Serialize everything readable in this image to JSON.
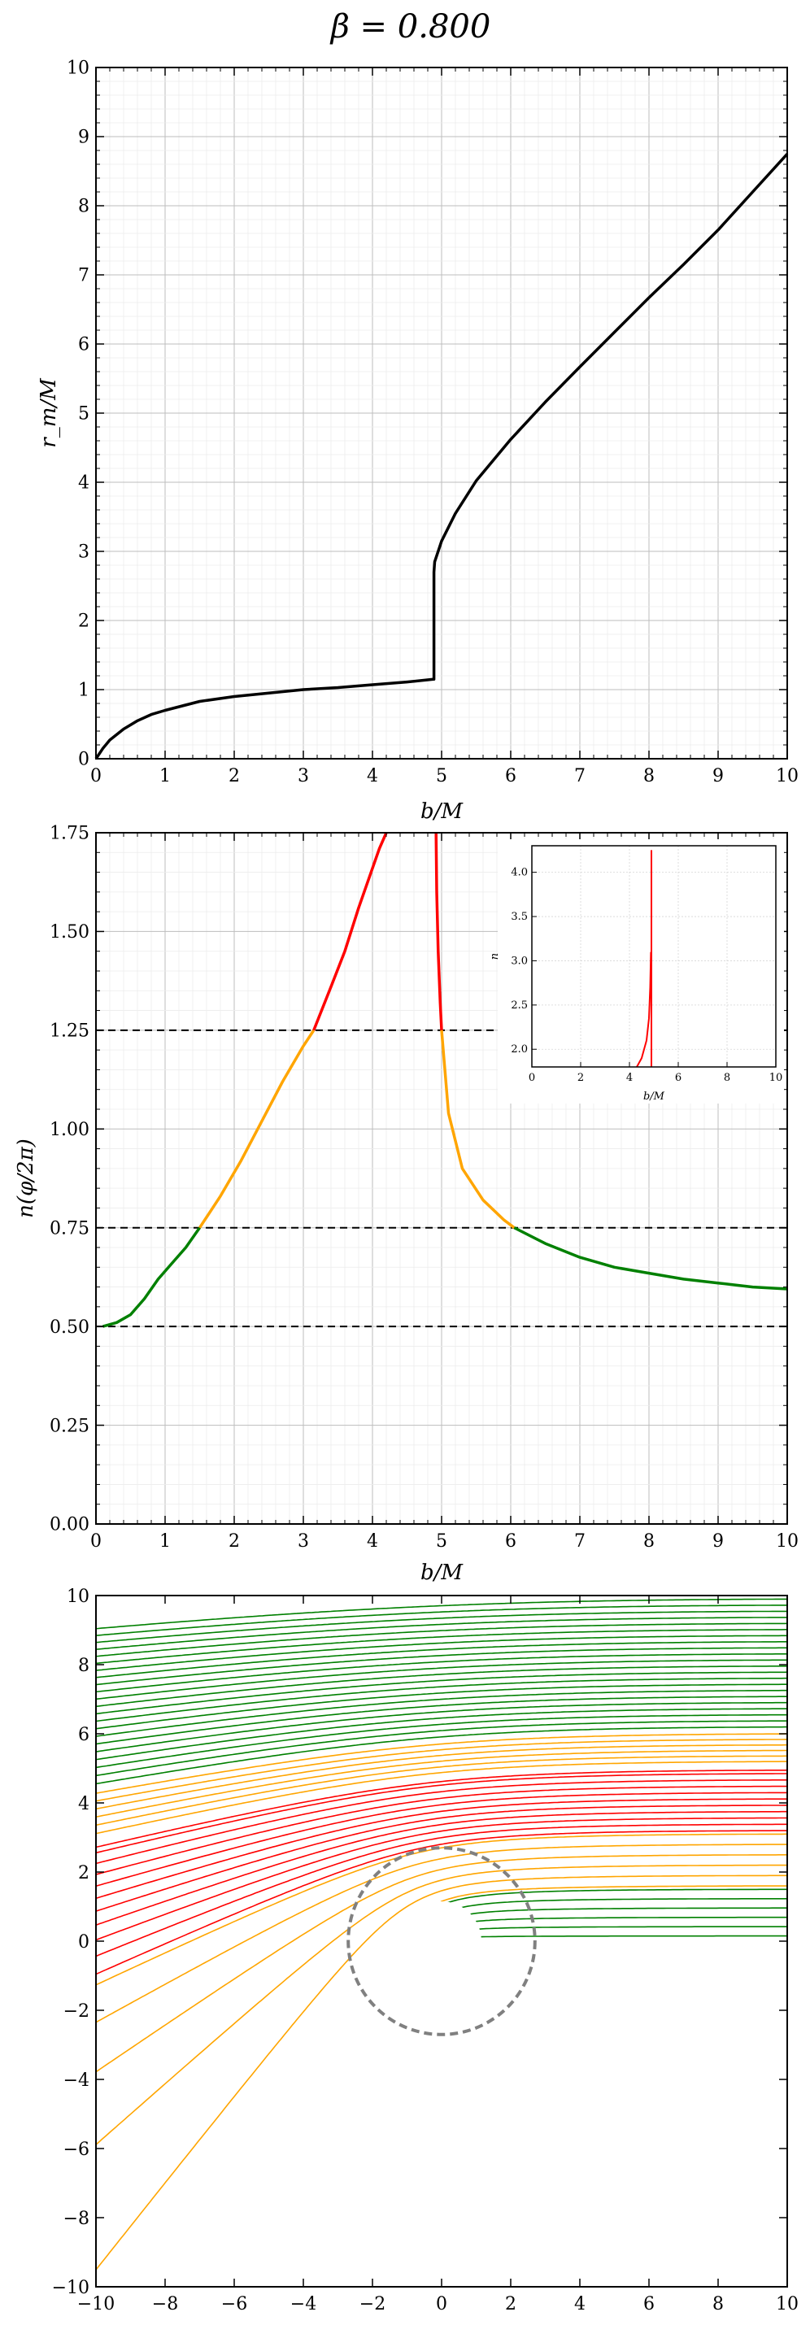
{
  "figure": {
    "title": "β = 0.800"
  },
  "chart_data": [
    {
      "id": "rm",
      "type": "line",
      "xlabel": "b/M",
      "ylabel": "r_m/M",
      "xlim": [
        0,
        10
      ],
      "ylim": [
        0,
        10
      ],
      "xticks": [
        "0",
        "1",
        "2",
        "3",
        "4",
        "5",
        "6",
        "7",
        "8",
        "9",
        "10"
      ],
      "yticks": [
        "0",
        "1",
        "2",
        "3",
        "4",
        "5",
        "6",
        "7",
        "8",
        "9",
        "10"
      ],
      "grid": true,
      "series": [
        {
          "color": "#000000",
          "x": [
            0,
            0.1,
            0.2,
            0.4,
            0.6,
            0.8,
            1.0,
            1.5,
            2.0,
            2.5,
            3.0,
            3.5,
            4.0,
            4.5,
            4.88,
            4.89,
            4.89,
            4.9,
            5.0,
            5.2,
            5.5,
            6.0,
            6.5,
            7.0,
            7.5,
            8.0,
            8.5,
            9.0,
            9.5,
            10.0
          ],
          "y": [
            0,
            0.15,
            0.27,
            0.43,
            0.55,
            0.64,
            0.7,
            0.83,
            0.9,
            0.95,
            1.0,
            1.03,
            1.07,
            1.11,
            1.15,
            1.15,
            2.7,
            2.85,
            3.15,
            3.55,
            4.02,
            4.62,
            5.16,
            5.67,
            6.17,
            6.67,
            7.15,
            7.65,
            8.2,
            8.75
          ]
        }
      ]
    },
    {
      "id": "n",
      "type": "line",
      "xlabel": "b/M",
      "ylabel": "n(φ/2π)",
      "xlim": [
        0,
        10
      ],
      "ylim": [
        0,
        1.75
      ],
      "xticks": [
        "0",
        "1",
        "2",
        "3",
        "4",
        "5",
        "6",
        "7",
        "8",
        "9",
        "10"
      ],
      "yticks": [
        "0.00",
        "0.25",
        "0.50",
        "0.75",
        "1.00",
        "1.25",
        "1.50",
        "1.75"
      ],
      "hlines": [
        0.5,
        0.75,
        1.25
      ],
      "grid": true,
      "series": [
        {
          "color": "#008000",
          "x": [
            0.1,
            0.3,
            0.5,
            0.7,
            0.9,
            1.1,
            1.3,
            1.5
          ],
          "y": [
            0.5,
            0.51,
            0.53,
            0.57,
            0.62,
            0.66,
            0.7,
            0.75
          ]
        },
        {
          "color": "#ffa500",
          "x": [
            1.5,
            1.8,
            2.1,
            2.4,
            2.7,
            3.0,
            3.15
          ],
          "y": [
            0.75,
            0.83,
            0.92,
            1.02,
            1.12,
            1.21,
            1.25
          ]
        },
        {
          "color": "#ff0000",
          "x": [
            3.15,
            3.4,
            3.6,
            3.8,
            4.0,
            4.1,
            4.2
          ],
          "y": [
            1.25,
            1.36,
            1.45,
            1.56,
            1.66,
            1.71,
            1.75
          ]
        },
        {
          "color": "#ff0000",
          "x": [
            4.92,
            4.93,
            4.95,
            4.98,
            5.0
          ],
          "y": [
            1.75,
            1.6,
            1.45,
            1.32,
            1.25
          ]
        },
        {
          "color": "#ffa500",
          "x": [
            5.0,
            5.1,
            5.3,
            5.6,
            5.9,
            6.05
          ],
          "y": [
            1.25,
            1.04,
            0.9,
            0.82,
            0.77,
            0.75
          ]
        },
        {
          "color": "#008000",
          "x": [
            6.05,
            6.5,
            7.0,
            7.5,
            8.0,
            8.5,
            9.0,
            9.5,
            10.0
          ],
          "y": [
            0.75,
            0.71,
            0.675,
            0.65,
            0.635,
            0.62,
            0.61,
            0.6,
            0.595
          ]
        }
      ],
      "inset": {
        "xlabel": "b/M",
        "ylabel": "n",
        "xlim": [
          0,
          10
        ],
        "ylim": [
          1.8,
          4.3
        ],
        "xticks": [
          "0",
          "2",
          "4",
          "6",
          "8",
          "10"
        ],
        "yticks": [
          "2.0",
          "2.5",
          "3.0",
          "3.5",
          "4.0"
        ],
        "series": [
          {
            "color": "#ff0000",
            "x": [
              4.3,
              4.5,
              4.7,
              4.8,
              4.85,
              4.88
            ],
            "y": [
              1.8,
              1.9,
              2.1,
              2.35,
              2.7,
              3.1
            ]
          },
          {
            "color": "#ff0000",
            "x": [
              4.9,
              4.9
            ],
            "y": [
              4.25,
              1.8
            ]
          }
        ]
      }
    },
    {
      "id": "rays",
      "type": "line",
      "xlim": [
        -10,
        10
      ],
      "ylim": [
        -10,
        10
      ],
      "xticks": [
        "−10",
        "−8",
        "−6",
        "−4",
        "−2",
        "0",
        "2",
        "4",
        "6",
        "8",
        "10"
      ],
      "yticks": [
        "−10",
        "−8",
        "−6",
        "−4",
        "−2",
        "0",
        "2",
        "4",
        "6",
        "8",
        "10"
      ],
      "ring_radius": 2.7,
      "hole_radius": 1.15,
      "colors": {
        "green": "#008000",
        "orange": "#ffa500",
        "red": "#ff0000",
        "ring": "#808080"
      },
      "ray_bands": [
        {
          "color": "#008000",
          "from": 0.15,
          "to": 1.5,
          "count": 6
        },
        {
          "color": "#ffa500",
          "from": 1.6,
          "to": 3.1,
          "count": 6
        },
        {
          "color": "#ff0000",
          "from": 3.2,
          "to": 4.85,
          "count": 10
        },
        {
          "color": "#ff0000",
          "from": 4.95,
          "to": 5.0,
          "count": 1
        },
        {
          "color": "#ffa500",
          "from": 5.2,
          "to": 6.0,
          "count": 6
        },
        {
          "color": "#008000",
          "from": 6.2,
          "to": 9.9,
          "count": 22
        }
      ]
    }
  ]
}
